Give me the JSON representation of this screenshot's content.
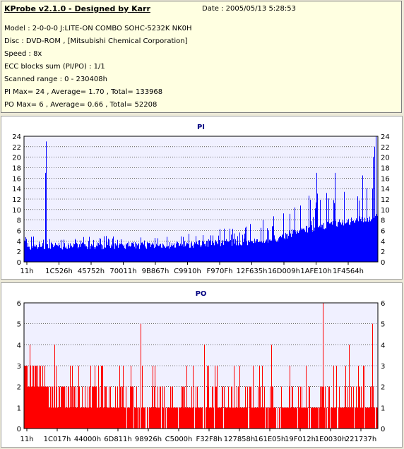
{
  "info": {
    "title": "KProbe v2.1.0 - Designed by Karr",
    "date": "Date : 2005/05/13 5:28:53",
    "lines": [
      "Model : 2-0-0-0 J:LITE-ON COMBO SOHC-5232K NK0H",
      "Disc : DVD-ROM ,  [Mitsubishi Chemical Corporation]",
      "Speed : 8x",
      "ECC blocks sum (PI/PO) : 1/1",
      "Scanned range : 0 - 230408h",
      "PI Max= 24 , Average= 1.70 , Total= 133968",
      "PO Max= 6 , Average= 0.66 , Total= 52208"
    ]
  },
  "chart_data": [
    {
      "type": "bar",
      "title": "PI",
      "color": "#0000ff",
      "ylim": [
        0,
        24
      ],
      "yticks": [
        0,
        2,
        4,
        6,
        8,
        10,
        12,
        14,
        16,
        18,
        20,
        22,
        24
      ],
      "xticks": [
        "11h",
        "1C526h",
        "45752h",
        "70011h",
        "9B867h",
        "C9910h",
        "F970Fh",
        "12F635h",
        "16D009h",
        "1AFE10h",
        "1F4564h"
      ],
      "xrange_hex": [
        "0h",
        "230408h"
      ],
      "profile": [
        {
          "x": 0.0,
          "base": 3.0,
          "peak": 5.0
        },
        {
          "x": 0.4,
          "base": 3.2,
          "peak": 5.0
        },
        {
          "x": 0.62,
          "base": 3.8,
          "peak": 7.0
        },
        {
          "x": 0.72,
          "base": 4.5,
          "peak": 9.0
        },
        {
          "x": 0.78,
          "base": 6.0,
          "peak": 12.0
        },
        {
          "x": 0.9,
          "base": 7.5,
          "peak": 16.0
        },
        {
          "x": 1.0,
          "base": 8.5,
          "peak": 17.0
        }
      ],
      "spikes": [
        {
          "x": 0.062,
          "value": 23
        },
        {
          "x": 0.059,
          "value": 17
        },
        {
          "x": 0.828,
          "value": 17
        },
        {
          "x": 0.88,
          "value": 17
        },
        {
          "x": 0.987,
          "value": 20
        },
        {
          "x": 0.995,
          "value": 24
        },
        {
          "x": 0.991,
          "value": 22
        }
      ]
    },
    {
      "type": "bar",
      "title": "PO",
      "color": "#ff0000",
      "ylim": [
        0,
        6
      ],
      "yticks": [
        0,
        1,
        2,
        3,
        4,
        5,
        6
      ],
      "xticks": [
        "11h",
        "1C017h",
        "44000h",
        "6D811h",
        "98926h",
        "C5000h",
        "F32F8h",
        "127858h",
        "161E05h",
        "19F012h",
        "1E0030h",
        "221737h"
      ],
      "xrange_hex": [
        "0h",
        "230408h"
      ],
      "profile": [
        {
          "x": 0.0,
          "base": 2.5,
          "peak": 3.0
        },
        {
          "x": 0.12,
          "base": 1.5,
          "peak": 3.0
        },
        {
          "x": 0.3,
          "base": 1.0,
          "peak": 3.0
        },
        {
          "x": 1.0,
          "base": 1.0,
          "peak": 3.0
        }
      ],
      "spikes": [
        {
          "x": 0.015,
          "value": 4
        },
        {
          "x": 0.085,
          "value": 4
        },
        {
          "x": 0.33,
          "value": 5
        },
        {
          "x": 0.845,
          "value": 6
        },
        {
          "x": 0.985,
          "value": 5
        },
        {
          "x": 0.51,
          "value": 4
        },
        {
          "x": 0.7,
          "value": 4
        },
        {
          "x": 0.92,
          "value": 4
        }
      ]
    }
  ]
}
